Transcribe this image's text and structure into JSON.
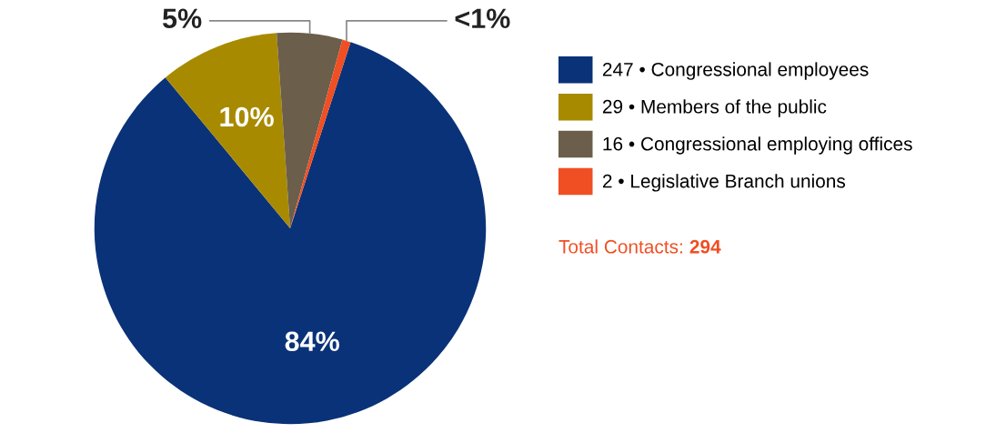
{
  "chart_data": {
    "type": "pie",
    "categories": [
      "247 • Congressional employees",
      "29 • Members of the public",
      "16 • Congressional employing offices",
      "2 • Legislative Branch unions"
    ],
    "values": [
      84.0,
      9.9,
      5.4,
      0.7
    ],
    "colors": [
      "#0a3278",
      "#a88a00",
      "#6b5e4a",
      "#f04e23"
    ],
    "value_labels": [
      "84%",
      "10%",
      "5%",
      "<1%"
    ],
    "legend": "right",
    "annotations": [
      "Total Contacts: 294"
    ]
  }
}
